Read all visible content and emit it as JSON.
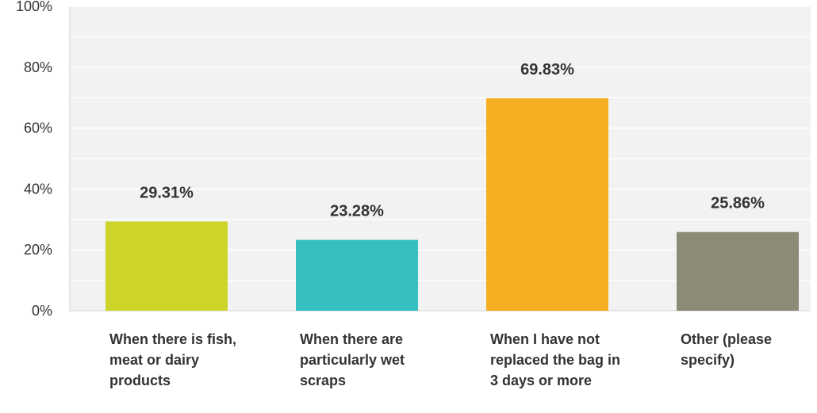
{
  "chart_data": {
    "type": "bar",
    "title": "",
    "xlabel": "",
    "ylabel": "",
    "ylim": [
      0,
      100
    ],
    "y_ticks": [
      "0%",
      "20%",
      "40%",
      "60%",
      "80%",
      "100%"
    ],
    "y_tick_values": [
      0,
      20,
      40,
      60,
      80,
      100
    ],
    "grid": true,
    "categories": [
      "When there is fish, meat or dairy products",
      "When there are particularly wet scraps",
      "When I have not replaced the bag in 3 days or more",
      "Other (please specify)"
    ],
    "values": [
      29.31,
      23.28,
      69.83,
      25.86
    ],
    "value_labels": [
      "29.31%",
      "23.28%",
      "69.83%",
      "25.86%"
    ],
    "colors": [
      "#cdd42a",
      "#35bfc0",
      "#f5ae22",
      "#8b8b78"
    ]
  }
}
